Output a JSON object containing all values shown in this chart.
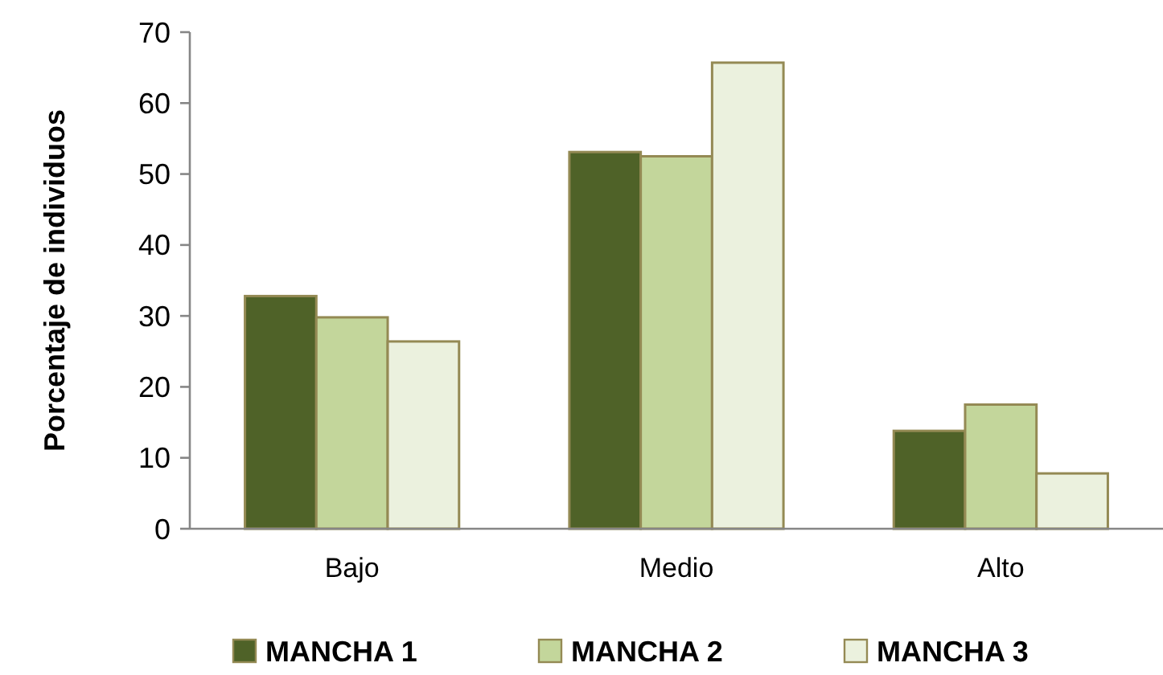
{
  "chart_data": {
    "type": "bar",
    "ylabel": "Porcentaje de individuos",
    "categories": [
      "Bajo",
      "Medio",
      "Alto"
    ],
    "series": [
      {
        "name": "MANCHA 1",
        "color": "#4f6228",
        "values": [
          32.8,
          53.1,
          13.8
        ]
      },
      {
        "name": "MANCHA 2",
        "color": "#c3d69b",
        "values": [
          29.8,
          52.5,
          17.5
        ]
      },
      {
        "name": "MANCHA 3",
        "color": "#ebf1de",
        "values": [
          26.4,
          65.7,
          7.8
        ]
      }
    ],
    "ylim": [
      0,
      70
    ],
    "yticks": [
      0,
      10,
      20,
      30,
      40,
      50,
      60,
      70
    ],
    "grid": false,
    "legend": "bottom"
  }
}
